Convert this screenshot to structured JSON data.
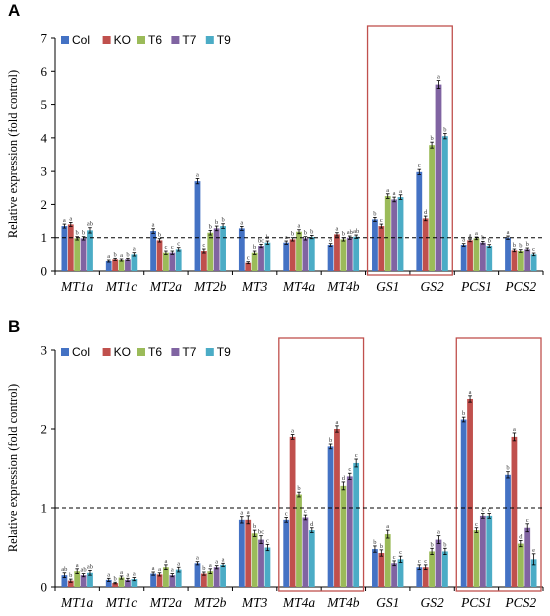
{
  "chart_data": [
    {
      "type": "bar",
      "panel_label": "A",
      "ylabel": "Relative  expression  (fold control)",
      "ylim": [
        0,
        7
      ],
      "yticks": [
        0,
        1,
        2,
        3,
        4,
        5,
        6,
        7
      ],
      "reference_line": 1,
      "categories": [
        "MT1a",
        "MT1c",
        "MT2a",
        "MT2b",
        "MT3",
        "MT4a",
        "MT4b",
        "GS1",
        "GS2",
        "PCS1",
        "PCS2"
      ],
      "highlight_groups": [
        [
          7,
          8
        ]
      ],
      "series": [
        {
          "name": "Col",
          "color": "#4472c4",
          "values": [
            1.35,
            0.3,
            1.2,
            2.7,
            1.28,
            0.85,
            0.78,
            1.55,
            2.98,
            0.78,
            1.0
          ],
          "errors": [
            0.06,
            0.03,
            0.07,
            0.08,
            0.06,
            0.05,
            0.04,
            0.06,
            0.08,
            0.04,
            0.05
          ],
          "labels": [
            "a",
            "a",
            "a",
            "a",
            "a",
            "a",
            "a",
            "b",
            "c",
            "a",
            "a"
          ]
        },
        {
          "name": "KO",
          "color": "#c0504d",
          "values": [
            1.4,
            0.35,
            0.92,
            0.6,
            0.25,
            0.95,
            1.1,
            1.35,
            1.58,
            0.92,
            0.62
          ],
          "errors": [
            0.06,
            0.03,
            0.05,
            0.06,
            0.03,
            0.05,
            0.05,
            0.06,
            0.07,
            0.04,
            0.04
          ],
          "labels": [
            "a",
            "b",
            "b",
            "c",
            "c",
            "b",
            "a",
            "c",
            "d",
            "a",
            "b"
          ]
        },
        {
          "name": "T6",
          "color": "#9bbb59",
          "values": [
            0.98,
            0.33,
            0.55,
            1.15,
            0.55,
            1.18,
            0.95,
            2.25,
            3.78,
            0.98,
            0.6
          ],
          "errors": [
            0.05,
            0.03,
            0.05,
            0.07,
            0.05,
            0.06,
            0.05,
            0.07,
            0.09,
            0.04,
            0.04
          ],
          "labels": [
            "b",
            "a",
            "c",
            "b",
            "b",
            "a",
            "b",
            "a",
            "b",
            "a",
            "b"
          ]
        },
        {
          "name": "T7",
          "color": "#8064a2",
          "values": [
            0.98,
            0.35,
            0.55,
            1.28,
            0.75,
            0.98,
            1.0,
            2.15,
            5.6,
            0.85,
            0.65
          ],
          "errors": [
            0.05,
            0.03,
            0.05,
            0.07,
            0.05,
            0.05,
            0.05,
            0.07,
            0.12,
            0.04,
            0.04
          ],
          "labels": [
            "b",
            "b",
            "c",
            "b",
            "bc",
            "b",
            "ab",
            "a",
            "a",
            "b",
            "b"
          ]
        },
        {
          "name": "T9",
          "color": "#4bacc6",
          "values": [
            1.22,
            0.5,
            0.65,
            1.35,
            0.85,
            1.02,
            1.03,
            2.22,
            4.05,
            0.75,
            0.5
          ],
          "errors": [
            0.08,
            0.05,
            0.05,
            0.07,
            0.05,
            0.05,
            0.05,
            0.07,
            0.08,
            0.04,
            0.04
          ],
          "labels": [
            "ab",
            "a",
            "c",
            "b",
            "b",
            "b",
            "ab",
            "a",
            "b",
            "b",
            "c"
          ]
        }
      ]
    },
    {
      "type": "bar",
      "panel_label": "B",
      "ylabel": "Relative  expression  (fold control)",
      "ylim": [
        0,
        3
      ],
      "yticks": [
        0,
        1,
        2,
        3
      ],
      "reference_line": 1,
      "categories": [
        "MT1a",
        "MT1c",
        "MT2a",
        "MT2b",
        "MT3",
        "MT4a",
        "MT4b",
        "GS1",
        "GS2",
        "PCS1",
        "PCS2"
      ],
      "highlight_groups": [
        [
          5,
          6
        ],
        [
          9,
          10
        ]
      ],
      "series": [
        {
          "name": "Col",
          "color": "#4472c4",
          "values": [
            0.15,
            0.09,
            0.17,
            0.3,
            0.85,
            0.85,
            1.78,
            0.48,
            0.25,
            2.12,
            1.42
          ],
          "errors": [
            0.03,
            0.02,
            0.02,
            0.02,
            0.04,
            0.03,
            0.03,
            0.04,
            0.03,
            0.03,
            0.04
          ],
          "labels": [
            "ab",
            "a",
            "a",
            "a",
            "a",
            "c",
            "b",
            "b",
            "c",
            "b",
            "b"
          ]
        },
        {
          "name": "KO",
          "color": "#c0504d",
          "values": [
            0.08,
            0.05,
            0.16,
            0.17,
            0.85,
            1.9,
            2.0,
            0.43,
            0.25,
            2.38,
            1.9
          ],
          "errors": [
            0.02,
            0.01,
            0.02,
            0.02,
            0.05,
            0.03,
            0.04,
            0.04,
            0.03,
            0.04,
            0.05
          ],
          "labels": [
            "b",
            "b",
            "a",
            "b",
            "a",
            "a",
            "a",
            "b",
            "c",
            "a",
            "a"
          ]
        },
        {
          "name": "T6",
          "color": "#9bbb59",
          "values": [
            0.2,
            0.12,
            0.25,
            0.2,
            0.68,
            1.17,
            1.28,
            0.67,
            0.45,
            0.72,
            0.55
          ],
          "errors": [
            0.03,
            0.02,
            0.03,
            0.03,
            0.04,
            0.03,
            0.05,
            0.05,
            0.04,
            0.03,
            0.04
          ],
          "labels": [
            "a",
            "a",
            "a",
            "a",
            "b",
            "b",
            "d",
            "a",
            "b",
            "c",
            "d"
          ]
        },
        {
          "name": "T7",
          "color": "#8064a2",
          "values": [
            0.15,
            0.09,
            0.15,
            0.25,
            0.6,
            0.88,
            1.4,
            0.3,
            0.6,
            0.9,
            0.75
          ],
          "errors": [
            0.02,
            0.02,
            0.02,
            0.02,
            0.05,
            0.03,
            0.04,
            0.03,
            0.05,
            0.03,
            0.05
          ],
          "labels": [
            "ab",
            "a",
            "a",
            "a",
            "bc",
            "c",
            "c",
            "c",
            "a",
            "c",
            "c"
          ]
        },
        {
          "name": "T9",
          "color": "#4bacc6",
          "values": [
            0.18,
            0.1,
            0.22,
            0.28,
            0.5,
            0.72,
            1.57,
            0.35,
            0.45,
            0.9,
            0.35
          ],
          "errors": [
            0.03,
            0.02,
            0.03,
            0.02,
            0.04,
            0.03,
            0.05,
            0.04,
            0.04,
            0.03,
            0.07
          ],
          "labels": [
            "ab",
            "a",
            "a",
            "a",
            "c",
            "d",
            "c",
            "c",
            "b",
            "c",
            "e"
          ]
        }
      ]
    }
  ]
}
